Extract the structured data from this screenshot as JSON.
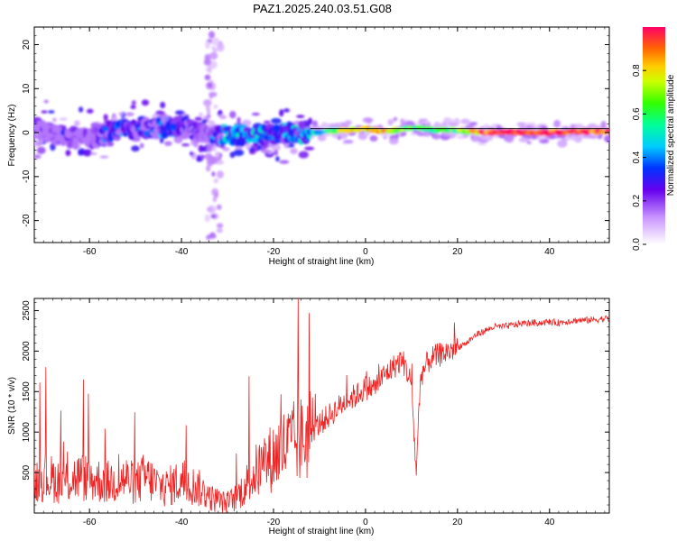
{
  "title": "PAZ1.2025.240.03.51.G08",
  "chart_data": [
    {
      "type": "heatmap",
      "xlabel": "Height of straight line (km)",
      "ylabel": "Frequency (Hz)",
      "xlim": [
        -72,
        53
      ],
      "ylim": [
        -25,
        24
      ],
      "xticks": [
        -60,
        -40,
        -20,
        0,
        20,
        40
      ],
      "yticks": [
        -20,
        -10,
        0,
        10,
        20
      ],
      "colorbar": {
        "label": "Normalized spectral amplitude",
        "range": [
          0,
          1
        ],
        "ticks": [
          0.0,
          0.2,
          0.4,
          0.6,
          0.8
        ],
        "colormap": "rainbow"
      },
      "ridge": {
        "x": [
          -70,
          -65,
          -60,
          -55,
          -50,
          -45,
          -40,
          -35,
          -30,
          -25,
          -20,
          -15,
          -10,
          -5,
          0,
          5,
          10,
          15,
          20,
          25,
          30,
          35,
          40,
          45,
          50,
          53
        ],
        "freq": [
          0.5,
          -1,
          -1.5,
          0.5,
          1,
          1,
          1.5,
          -0.5,
          -0.5,
          -0.5,
          -0.5,
          0,
          0,
          0.5,
          0.8,
          0.3,
          1.2,
          0.5,
          0.5,
          0,
          0,
          0,
          0,
          0.2,
          0.2,
          0.2
        ],
        "amplitude": [
          0.15,
          0.2,
          0.2,
          0.35,
          0.3,
          0.35,
          0.35,
          0.2,
          0.45,
          0.45,
          0.4,
          0.4,
          0.5,
          0.7,
          0.85,
          0.8,
          0.6,
          0.55,
          0.6,
          0.9,
          0.95,
          0.95,
          0.95,
          0.95,
          0.95,
          0.95
        ]
      }
    },
    {
      "type": "line",
      "xlabel": "Height of straight line (km)",
      "ylabel": "SNR (10 * v/v)",
      "xlim": [
        -72,
        53
      ],
      "ylim": [
        0,
        2650
      ],
      "xticks": [
        -60,
        -40,
        -20,
        0,
        20,
        40
      ],
      "yticks": [
        500,
        1000,
        1500,
        2000,
        2500
      ],
      "series": [
        {
          "color": "#ee2222",
          "x": [
            -72,
            -70,
            -68,
            -66,
            -64,
            -62,
            -60,
            -58,
            -56,
            -54,
            -52,
            -50,
            -48,
            -46,
            -44,
            -42,
            -40,
            -38,
            -36,
            -34,
            -32,
            -30,
            -28,
            -26,
            -24,
            -22,
            -20,
            -18,
            -16,
            -14,
            -12,
            -10,
            -8,
            -6,
            -4,
            -2,
            0,
            2,
            4,
            6,
            8,
            10,
            11,
            12,
            14,
            16,
            18,
            20,
            22,
            24,
            26,
            28,
            30,
            32,
            34,
            36,
            38,
            40,
            42,
            44,
            46,
            48,
            50,
            52,
            53
          ],
          "y": [
            400,
            450,
            420,
            380,
            420,
            450,
            420,
            400,
            380,
            400,
            420,
            350,
            450,
            380,
            300,
            350,
            400,
            350,
            300,
            200,
            150,
            120,
            200,
            350,
            500,
            600,
            700,
            800,
            850,
            900,
            1000,
            1100,
            1200,
            1300,
            1400,
            1450,
            1550,
            1550,
            1700,
            1800,
            1900,
            1600,
            500,
            1700,
            1900,
            1950,
            2000,
            2050,
            2100,
            2200,
            2250,
            2300,
            2300,
            2320,
            2340,
            2350,
            2350,
            2360,
            2350,
            2370,
            2380,
            2380,
            2390,
            2400,
            2400
          ]
        }
      ]
    }
  ]
}
